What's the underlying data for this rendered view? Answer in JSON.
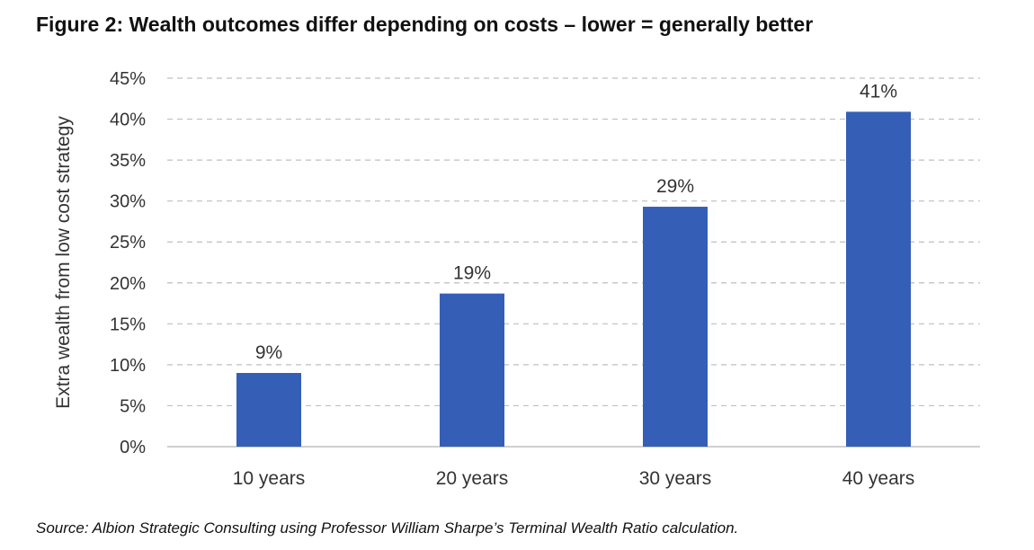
{
  "figure": {
    "title": "Figure 2: Wealth outcomes differ depending on costs – lower = generally better",
    "source": "Source: Albion Strategic Consulting using Professor William Sharpe’s Terminal Wealth Ratio calculation."
  },
  "chart_data": {
    "type": "bar",
    "title": "Figure 2: Wealth outcomes differ depending on costs – lower = generally better",
    "xlabel": "",
    "ylabel": "Extra wealth from low cost strategy",
    "categories": [
      "10 years",
      "20 years",
      "30 years",
      "40 years"
    ],
    "values": [
      9,
      18.7,
      29.3,
      40.9
    ],
    "data_labels": [
      "9%",
      "19%",
      "29%",
      "41%"
    ],
    "ylim": [
      0,
      45
    ],
    "yticks": [
      0,
      5,
      10,
      15,
      20,
      25,
      30,
      35,
      40,
      45
    ],
    "ytick_labels": [
      "0%",
      "5%",
      "10%",
      "15%",
      "20%",
      "25%",
      "30%",
      "35%",
      "40%",
      "45%"
    ],
    "grid": "horizontal dashed",
    "legend": "none",
    "colors": {
      "bar": "#355EB7",
      "grid": "#BFBFBF",
      "axis": "#BFBFBF",
      "text": "#333333"
    }
  }
}
